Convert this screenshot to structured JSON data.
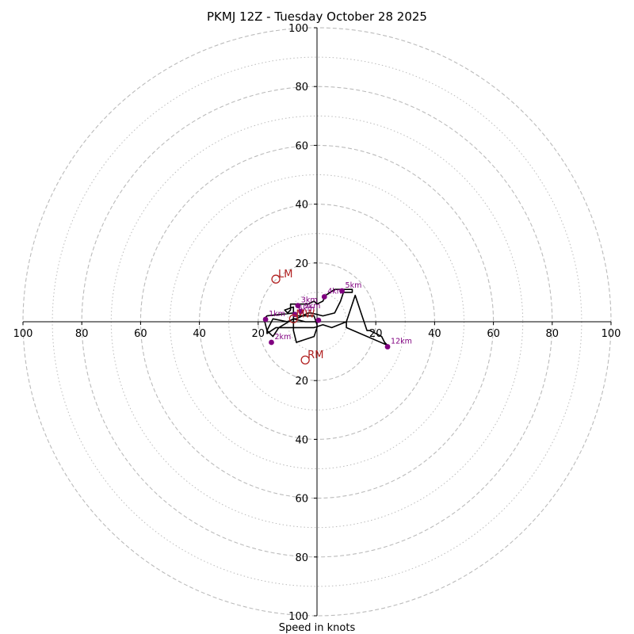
{
  "chart_data": {
    "type": "hodograph",
    "title": "PKMJ 12Z - Tuesday October 28 2025",
    "xlabel": "Speed in knots",
    "units": "knots",
    "xlim": [
      -100,
      100
    ],
    "ylim": [
      -100,
      100
    ],
    "axis_ticks": [
      {
        "label": "100",
        "value": -100
      },
      {
        "label": "80",
        "value": -80
      },
      {
        "label": "60",
        "value": -60
      },
      {
        "label": "40",
        "value": -40
      },
      {
        "label": "20",
        "value": -20
      },
      {
        "label": "20",
        "value": 20
      },
      {
        "label": "40",
        "value": 40
      },
      {
        "label": "60",
        "value": 60
      },
      {
        "label": "80",
        "value": 80
      },
      {
        "label": "100",
        "value": 100
      }
    ],
    "rings_dashed": [
      20,
      40,
      60,
      80,
      100
    ],
    "rings_dotted": [
      10,
      30,
      50,
      70,
      90
    ],
    "colors": {
      "trace": "#000000",
      "height_marker": "#800080",
      "storm_motion": "#b22222",
      "ring": "#bbbbbb",
      "axis": "#000000"
    },
    "trace": [
      [
        0,
        -1
      ],
      [
        -1,
        2
      ],
      [
        -8,
        2
      ],
      [
        -8,
        3
      ],
      [
        -17,
        2
      ],
      [
        -18,
        1
      ],
      [
        -17,
        -3
      ],
      [
        -15,
        -5
      ],
      [
        -13,
        -2
      ],
      [
        -8,
        1
      ],
      [
        -7,
        1
      ],
      [
        -3,
        3
      ],
      [
        -2,
        3
      ],
      [
        2,
        2
      ],
      [
        6,
        3
      ],
      [
        8,
        7
      ],
      [
        9,
        10
      ],
      [
        10,
        10
      ],
      [
        12,
        10
      ],
      [
        12,
        11
      ],
      [
        8,
        11
      ],
      [
        6,
        11
      ],
      [
        3,
        9
      ],
      [
        2,
        7
      ],
      [
        0,
        6
      ],
      [
        -1,
        7
      ],
      [
        -3,
        6
      ],
      [
        -5,
        6
      ],
      [
        -7,
        6
      ],
      [
        -8,
        6
      ],
      [
        -9,
        6
      ],
      [
        -9,
        4
      ],
      [
        -10,
        3
      ],
      [
        -11,
        4
      ],
      [
        -8,
        5
      ],
      [
        -8,
        -3
      ],
      [
        -7,
        -7
      ],
      [
        -1,
        -5
      ],
      [
        0,
        -2
      ],
      [
        0,
        0
      ],
      [
        -4,
        0
      ],
      [
        -8,
        1
      ],
      [
        -10,
        0
      ],
      [
        -15,
        1
      ],
      [
        -17,
        -3
      ],
      [
        -17,
        -4
      ],
      [
        -14,
        -2
      ],
      [
        -1,
        -2
      ],
      [
        2,
        -1
      ],
      [
        5,
        -2
      ],
      [
        10,
        0
      ],
      [
        13,
        9
      ],
      [
        15,
        3
      ],
      [
        17,
        -3
      ],
      [
        18,
        -3
      ],
      [
        20,
        -4
      ],
      [
        22,
        -5
      ],
      [
        23,
        -7
      ],
      [
        24,
        -8
      ],
      [
        10,
        -2
      ],
      [
        10,
        0
      ]
    ],
    "height_markers": [
      {
        "label": "1km",
        "u": -17.5,
        "v": 0.8
      },
      {
        "label": "2km",
        "u": -15.5,
        "v": -7
      },
      {
        "label": "3km",
        "u": -6.5,
        "v": 5.5
      },
      {
        "label": "4km",
        "u": 2.5,
        "v": 8.5
      },
      {
        "label": "5km",
        "u": 8.5,
        "v": 10.5
      },
      {
        "label": "6km",
        "u": -7.5,
        "v": 2.5
      },
      {
        "label": "9km",
        "u": -5.5,
        "v": 3.5
      },
      {
        "label": "12km",
        "u": 24,
        "v": -8.5
      },
      {
        "label": "",
        "u": 0.5,
        "v": 0.5
      }
    ],
    "storm_motion": [
      {
        "label": "LM",
        "u": -14,
        "v": 14.5
      },
      {
        "label": "RM",
        "u": -4,
        "v": -13
      },
      {
        "label": "MW",
        "u": -8,
        "v": 1
      }
    ]
  }
}
